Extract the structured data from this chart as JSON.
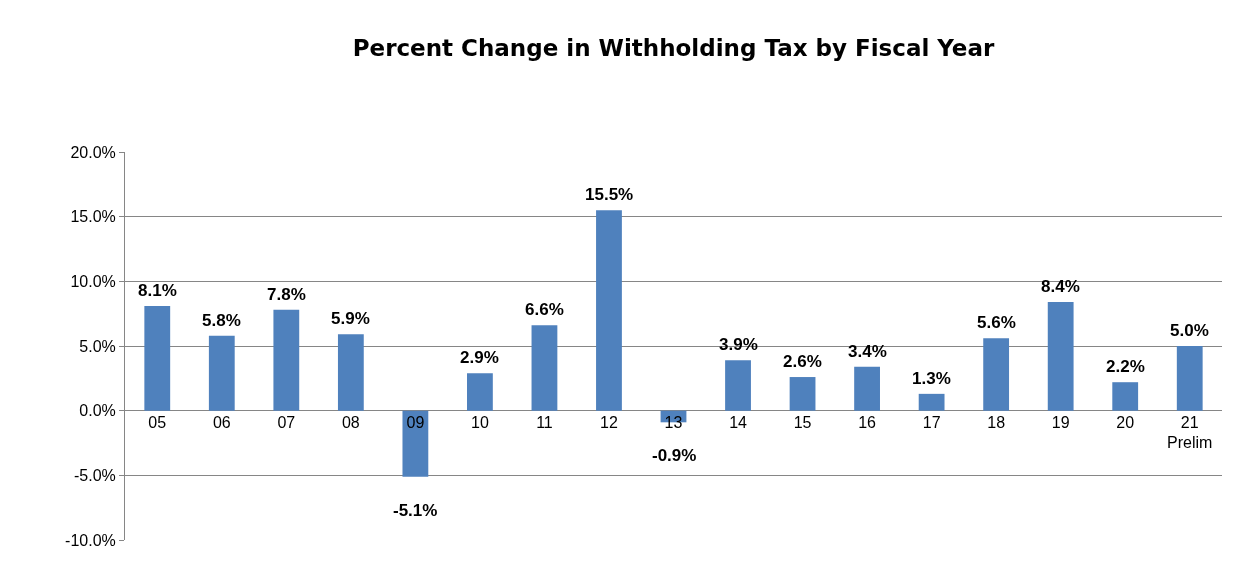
{
  "chart_data": {
    "type": "bar",
    "title": "Percent Change in Withholding Tax by Fiscal Year",
    "categories": [
      "05",
      "06",
      "07",
      "08",
      "09",
      "10",
      "11",
      "12",
      "13",
      "14",
      "15",
      "16",
      "17",
      "18",
      "19",
      "20",
      "21\nPrelim"
    ],
    "values": [
      8.1,
      5.8,
      7.8,
      5.9,
      -5.1,
      2.9,
      6.6,
      15.5,
      -0.9,
      3.9,
      2.6,
      3.4,
      1.3,
      5.6,
      8.4,
      2.2,
      5.0
    ],
    "value_labels": [
      "8.1%",
      "5.8%",
      "7.8%",
      "5.9%",
      "-5.1%",
      "2.9%",
      "6.6%",
      "15.5%",
      "-0.9%",
      "3.9%",
      "2.6%",
      "3.4%",
      "1.3%",
      "5.6%",
      "8.4%",
      "2.2%",
      "5.0%"
    ],
    "color": "#4f81bd",
    "ylim": [
      -10,
      20
    ],
    "yticks": [
      {
        "value": -10,
        "label": "-10.0%"
      },
      {
        "value": -5,
        "label": "-5.0%"
      },
      {
        "value": 0,
        "label": "0.0%"
      },
      {
        "value": 5,
        "label": "5.0%"
      },
      {
        "value": 10,
        "label": "10.0%"
      },
      {
        "value": 15,
        "label": "15.0%"
      },
      {
        "value": 20,
        "label": "20.0%"
      }
    ],
    "grid": "y"
  }
}
